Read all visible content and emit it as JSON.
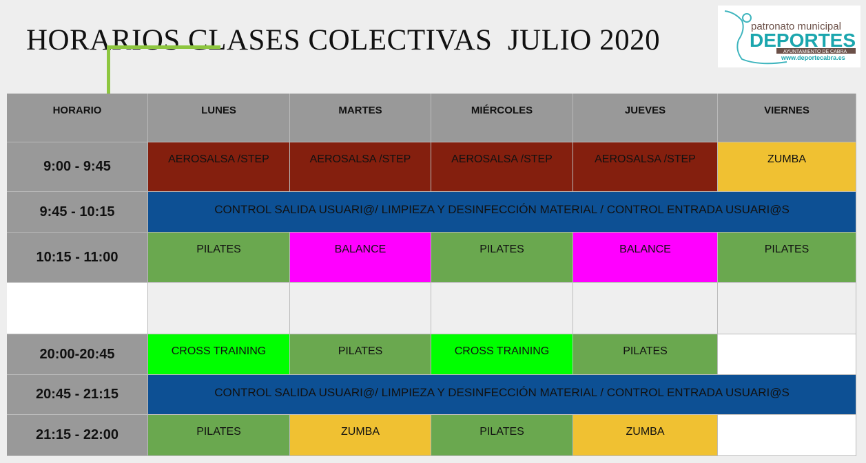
{
  "title": "HORARIOS CLASES COLECTIVAS  JULIO 2020",
  "logo": {
    "line1": "patronato municipal",
    "line2": "DEPORTES",
    "line3": "AYUNTAMIENTO DE CABRA",
    "line4": "www.deportecabra.es"
  },
  "headers": [
    "HORARIO",
    "LUNES",
    "MARTES",
    "MIÉRCOLES",
    "JUEVES",
    "VIERNES"
  ],
  "rows": [
    {
      "time": "9:00 - 9:45",
      "cells": [
        {
          "text": "AEROSALSA /STEP",
          "color": "#841f0e"
        },
        {
          "text": "AEROSALSA /STEP",
          "color": "#841f0e"
        },
        {
          "text": "AEROSALSA /STEP",
          "color": "#841f0e"
        },
        {
          "text": "AEROSALSA /STEP",
          "color": "#841f0e"
        },
        {
          "text": "ZUMBA",
          "color": "#f0c132"
        }
      ]
    },
    {
      "time": "9:45 - 10:15",
      "cells": [
        {
          "text": "CONTROL SALIDA USUARI@/ LIMPIEZA Y DESINFECCIÓN MATERIAL / CONTROL ENTRADA USUARI@S",
          "color": "#0d5094",
          "span": 5
        }
      ]
    },
    {
      "time": "10:15 - 11:00",
      "cells": [
        {
          "text": "PILATES",
          "color": "#6aa84f"
        },
        {
          "text": "BALANCE",
          "color": "#ff00ff"
        },
        {
          "text": "PILATES",
          "color": "#6aa84f"
        },
        {
          "text": "BALANCE",
          "color": "#ff00ff"
        },
        {
          "text": "PILATES",
          "color": "#6aa84f"
        }
      ]
    },
    {
      "time": "",
      "timeColor": "#ffffff",
      "cells": [
        {
          "text": "",
          "color": "#efefef"
        },
        {
          "text": "",
          "color": "#efefef"
        },
        {
          "text": "",
          "color": "#efefef"
        },
        {
          "text": "",
          "color": "#efefef"
        },
        {
          "text": "",
          "color": "#efefef"
        }
      ]
    },
    {
      "time": "20:00-20:45",
      "cells": [
        {
          "text": "CROSS TRAINING",
          "color": "#00ff00"
        },
        {
          "text": "PILATES",
          "color": "#6aa84f"
        },
        {
          "text": "CROSS TRAINING",
          "color": "#00ff00"
        },
        {
          "text": "PILATES",
          "color": "#6aa84f"
        },
        {
          "text": "",
          "color": "#ffffff"
        }
      ]
    },
    {
      "time": "20:45 - 21:15",
      "cells": [
        {
          "text": "CONTROL SALIDA USUARI@/ LIMPIEZA Y DESINFECCIÓN MATERIAL / CONTROL ENTRADA USUARI@S",
          "color": "#0d5094",
          "span": 5
        }
      ]
    },
    {
      "time": "21:15 - 22:00",
      "cells": [
        {
          "text": "PILATES",
          "color": "#6aa84f"
        },
        {
          "text": "ZUMBA",
          "color": "#f0c132"
        },
        {
          "text": "PILATES",
          "color": "#6aa84f"
        },
        {
          "text": "ZUMBA",
          "color": "#f0c132"
        },
        {
          "text": "",
          "color": "#ffffff"
        }
      ]
    }
  ]
}
